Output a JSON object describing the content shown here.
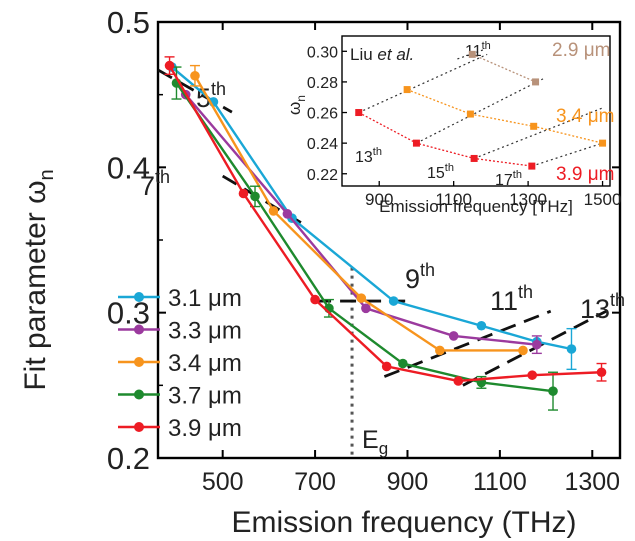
{
  "chart_data": [
    {
      "type": "line",
      "xlabel": "Emission frequency (THz)",
      "ylabel_main": "Fit parameter ω",
      "ylabel_sub": "n",
      "xlim": [
        360,
        1360
      ],
      "ylim": [
        0.2,
        0.5
      ],
      "xticks": [
        "500",
        "700",
        "900",
        "1100",
        "1300"
      ],
      "yticks": [
        "0.2",
        "0.3",
        "0.4",
        "0.5"
      ],
      "grid": false,
      "legend_position": "bottom-left",
      "series": [
        {
          "name": "3.1 μm",
          "color": "#1aa7d6",
          "x": [
            390,
            480,
            650,
            870,
            1060,
            1180,
            1255
          ],
          "y": [
            0.469,
            0.445,
            0.365,
            0.308,
            0.291,
            0.28,
            0.275
          ],
          "err": [
            0,
            0,
            0,
            0,
            0,
            0,
            0.014
          ]
        },
        {
          "name": "3.3 μm",
          "color": "#9b3a9e",
          "x": [
            420,
            640,
            810,
            1000,
            1180
          ],
          "y": [
            0.45,
            0.368,
            0.303,
            0.284,
            0.278
          ],
          "err": [
            0,
            0,
            0,
            0,
            0.006
          ]
        },
        {
          "name": "3.4 μm",
          "color": "#f7941d",
          "x": [
            440,
            610,
            800,
            970,
            1150
          ],
          "y": [
            0.463,
            0.37,
            0.31,
            0.274,
            0.274
          ],
          "err": [
            0.007,
            0,
            0,
            0,
            0
          ]
        },
        {
          "name": "3.7 μm",
          "color": "#1e8a2e",
          "x": [
            400,
            570,
            730,
            890,
            1060,
            1215
          ],
          "y": [
            0.458,
            0.38,
            0.303,
            0.265,
            0.252,
            0.246
          ],
          "err": [
            0.011,
            0.007,
            0.006,
            0,
            0.004,
            0.013
          ]
        },
        {
          "name": "3.9 μm",
          "color": "#ed1c24",
          "x": [
            385,
            545,
            700,
            855,
            1010,
            1170,
            1320
          ],
          "y": [
            0.47,
            0.382,
            0.309,
            0.263,
            0.253,
            0.257,
            0.259
          ],
          "err": [
            0.006,
            0,
            0,
            0,
            0,
            0,
            0.006
          ]
        }
      ],
      "guides": [
        {
          "label": "5",
          "label_sup": "th",
          "x": [
            360,
            520
          ],
          "y": [
            0.467,
            0.438
          ]
        },
        {
          "label": "7",
          "label_sup": "th",
          "x": [
            500,
            680
          ],
          "y": [
            0.394,
            0.36
          ]
        },
        {
          "label": "9",
          "label_sup": "th",
          "x": [
            700,
            895
          ],
          "y": [
            0.308,
            0.308
          ]
        },
        {
          "label": "11",
          "label_sup": "th",
          "x": [
            850,
            1210
          ],
          "y": [
            0.256,
            0.301
          ]
        },
        {
          "label": "13",
          "label_sup": "th",
          "x": [
            1020,
            1330
          ],
          "y": [
            0.25,
            0.301
          ]
        }
      ],
      "annotations": {
        "eg_label": "E",
        "eg_sub": "g",
        "eg_x": 780
      }
    },
    {
      "type": "scatter",
      "xlabel": "Emission frequency [THz]",
      "ylabel_main": "ω",
      "ylabel_sub": "n",
      "xlim": [
        800,
        1520
      ],
      "ylim": [
        0.212,
        0.31
      ],
      "xticks": [
        "900",
        "1100",
        "1300",
        "1500"
      ],
      "yticks": [
        "0.22",
        "0.24",
        "0.26",
        "0.28",
        "0.30"
      ],
      "citation_prefix": "Liu ",
      "citation_italic": "et al.",
      "series": [
        {
          "name": "2.9 μm",
          "color": "#b8927a",
          "x": [
            1150,
            1320
          ],
          "y": [
            0.298,
            0.28
          ]
        },
        {
          "name": "3.4 μm",
          "color": "#f7941d",
          "x": [
            975,
            1145,
            1315,
            1500
          ],
          "y": [
            0.275,
            0.259,
            0.251,
            0.24
          ]
        },
        {
          "name": "3.9 μm",
          "color": "#ed1c24",
          "x": [
            845,
            1000,
            1155,
            1310
          ],
          "y": [
            0.26,
            0.24,
            0.23,
            0.225
          ]
        }
      ],
      "order_lines": [
        {
          "label": "11",
          "label_sup": "th",
          "x": [
            1110,
            1180
          ],
          "y": [
            0.295,
            0.301
          ]
        },
        {
          "label": "13",
          "label_sup": "th",
          "x": [
            845,
            1190
          ],
          "y": [
            0.26,
            0.298
          ]
        },
        {
          "label": "15",
          "label_sup": "th",
          "x": [
            1000,
            1340
          ],
          "y": [
            0.24,
            0.282
          ]
        },
        {
          "label": "17",
          "label_sup": "th",
          "x": [
            1155,
            1500
          ],
          "y": [
            0.23,
            0.263
          ]
        },
        {
          "label": "",
          "label_sup": "",
          "x": [
            1310,
            1500
          ],
          "y": [
            0.225,
            0.24
          ]
        }
      ]
    }
  ]
}
